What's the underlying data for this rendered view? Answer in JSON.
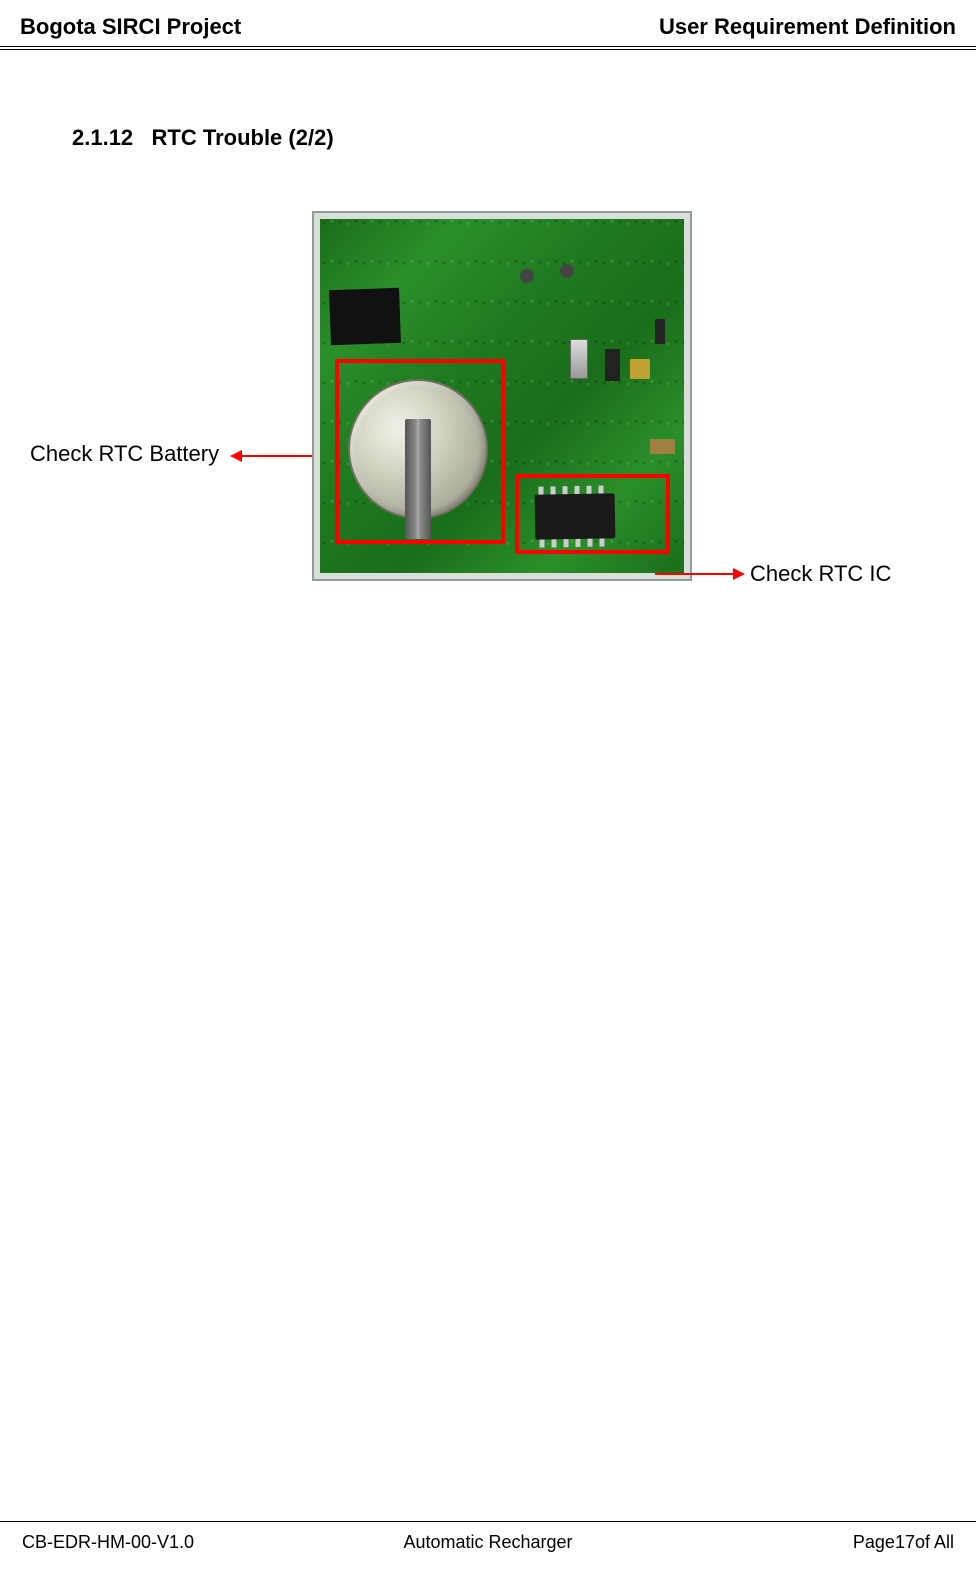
{
  "header": {
    "left": "Bogota SIRCI Project",
    "right": "User Requirement Definition"
  },
  "section": {
    "number": "2.1.12",
    "title": "RTC Trouble (2/2)"
  },
  "figure": {
    "label_battery": "Check RTC Battery",
    "label_ic": "Check RTC IC",
    "highlight_color": "#ff0000",
    "arrow_color": "#ff0000",
    "pcb_color": "#1f7a1f",
    "battery_box": {
      "type": "rectangle",
      "target": "coin-cell-battery"
    },
    "ic_box": {
      "type": "rectangle",
      "target": "rtc-ic-chip"
    }
  },
  "footer": {
    "left": "CB-EDR-HM-00-V1.0",
    "center": "Automatic Recharger",
    "right_prefix": "Page",
    "page_number": "17",
    "right_suffix": "of All"
  }
}
